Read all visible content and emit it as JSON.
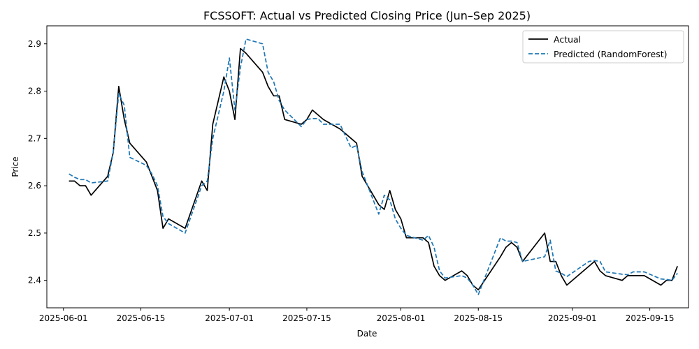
{
  "chart_data": {
    "type": "line",
    "title": "FCSSOFT: Actual vs Predicted Closing Price (Jun–Sep 2025)",
    "xlabel": "Date",
    "ylabel": "Price",
    "x_ticks": [
      "2025-06-01",
      "2025-06-15",
      "2025-07-01",
      "2025-07-15",
      "2025-08-01",
      "2025-08-15",
      "2025-09-01",
      "2025-09-15"
    ],
    "y_ticks": [
      "2.4",
      "2.5",
      "2.6",
      "2.7",
      "2.8",
      "2.9"
    ],
    "xlim": [
      "2025-05-29",
      "2025-09-22"
    ],
    "ylim": [
      2.342,
      2.938
    ],
    "legend_position": "top-right",
    "grid": false,
    "series": [
      {
        "name": "Actual",
        "color": "#000000",
        "style": "solid",
        "points": [
          [
            "2025-06-02",
            2.61
          ],
          [
            "2025-06-03",
            2.61
          ],
          [
            "2025-06-04",
            2.6
          ],
          [
            "2025-06-05",
            2.6
          ],
          [
            "2025-06-06",
            2.58
          ],
          [
            "2025-06-09",
            2.62
          ],
          [
            "2025-06-10",
            2.67
          ],
          [
            "2025-06-11",
            2.81
          ],
          [
            "2025-06-12",
            2.74
          ],
          [
            "2025-06-13",
            2.69
          ],
          [
            "2025-06-16",
            2.65
          ],
          [
            "2025-06-17",
            2.62
          ],
          [
            "2025-06-18",
            2.59
          ],
          [
            "2025-06-19",
            2.51
          ],
          [
            "2025-06-20",
            2.53
          ],
          [
            "2025-06-23",
            2.51
          ],
          [
            "2025-06-26",
            2.61
          ],
          [
            "2025-06-27",
            2.59
          ],
          [
            "2025-06-28",
            2.73
          ],
          [
            "2025-06-30",
            2.83
          ],
          [
            "2025-07-01",
            2.8
          ],
          [
            "2025-07-02",
            2.74
          ],
          [
            "2025-07-03",
            2.89
          ],
          [
            "2025-07-04",
            2.88
          ],
          [
            "2025-07-07",
            2.84
          ],
          [
            "2025-07-08",
            2.81
          ],
          [
            "2025-07-09",
            2.79
          ],
          [
            "2025-07-10",
            2.79
          ],
          [
            "2025-07-11",
            2.74
          ],
          [
            "2025-07-14",
            2.73
          ],
          [
            "2025-07-15",
            2.74
          ],
          [
            "2025-07-16",
            2.76
          ],
          [
            "2025-07-18",
            2.74
          ],
          [
            "2025-07-21",
            2.72
          ],
          [
            "2025-07-23",
            2.7
          ],
          [
            "2025-07-24",
            2.69
          ],
          [
            "2025-07-25",
            2.62
          ],
          [
            "2025-07-28",
            2.56
          ],
          [
            "2025-07-29",
            2.55
          ],
          [
            "2025-07-30",
            2.59
          ],
          [
            "2025-07-31",
            2.55
          ],
          [
            "2025-08-01",
            2.53
          ],
          [
            "2025-08-02",
            2.49
          ],
          [
            "2025-08-05",
            2.49
          ],
          [
            "2025-08-06",
            2.48
          ],
          [
            "2025-08-07",
            2.43
          ],
          [
            "2025-08-08",
            2.41
          ],
          [
            "2025-08-09",
            2.4
          ],
          [
            "2025-08-12",
            2.42
          ],
          [
            "2025-08-13",
            2.41
          ],
          [
            "2025-08-14",
            2.39
          ],
          [
            "2025-08-15",
            2.38
          ],
          [
            "2025-08-19",
            2.45
          ],
          [
            "2025-08-20",
            2.47
          ],
          [
            "2025-08-21",
            2.48
          ],
          [
            "2025-08-22",
            2.47
          ],
          [
            "2025-08-23",
            2.44
          ],
          [
            "2025-08-27",
            2.5
          ],
          [
            "2025-08-28",
            2.44
          ],
          [
            "2025-08-29",
            2.44
          ],
          [
            "2025-08-30",
            2.41
          ],
          [
            "2025-08-31",
            2.39
          ],
          [
            "2025-09-04",
            2.43
          ],
          [
            "2025-09-05",
            2.44
          ],
          [
            "2025-09-06",
            2.42
          ],
          [
            "2025-09-07",
            2.41
          ],
          [
            "2025-09-10",
            2.4
          ],
          [
            "2025-09-11",
            2.41
          ],
          [
            "2025-09-14",
            2.41
          ],
          [
            "2025-09-17",
            2.39
          ],
          [
            "2025-09-18",
            2.4
          ],
          [
            "2025-09-19",
            2.4
          ],
          [
            "2025-09-20",
            2.43
          ]
        ]
      },
      {
        "name": "Predicted (RandomForest)",
        "color": "#1f77b4",
        "style": "dashed",
        "points": [
          [
            "2025-06-02",
            2.625
          ],
          [
            "2025-06-03",
            2.618
          ],
          [
            "2025-06-04",
            2.613
          ],
          [
            "2025-06-05",
            2.613
          ],
          [
            "2025-06-06",
            2.606
          ],
          [
            "2025-06-09",
            2.61
          ],
          [
            "2025-06-10",
            2.67
          ],
          [
            "2025-06-11",
            2.795
          ],
          [
            "2025-06-12",
            2.77
          ],
          [
            "2025-06-13",
            2.66
          ],
          [
            "2025-06-16",
            2.643
          ],
          [
            "2025-06-17",
            2.625
          ],
          [
            "2025-06-18",
            2.6
          ],
          [
            "2025-06-19",
            2.535
          ],
          [
            "2025-06-20",
            2.52
          ],
          [
            "2025-06-23",
            2.5
          ],
          [
            "2025-06-26",
            2.6
          ],
          [
            "2025-06-27",
            2.61
          ],
          [
            "2025-06-28",
            2.7
          ],
          [
            "2025-06-30",
            2.8
          ],
          [
            "2025-07-01",
            2.87
          ],
          [
            "2025-07-02",
            2.76
          ],
          [
            "2025-07-03",
            2.85
          ],
          [
            "2025-07-04",
            2.91
          ],
          [
            "2025-07-07",
            2.9
          ],
          [
            "2025-07-08",
            2.84
          ],
          [
            "2025-07-09",
            2.82
          ],
          [
            "2025-07-10",
            2.78
          ],
          [
            "2025-07-11",
            2.76
          ],
          [
            "2025-07-14",
            2.725
          ],
          [
            "2025-07-15",
            2.74
          ],
          [
            "2025-07-16",
            2.742
          ],
          [
            "2025-07-17",
            2.742
          ],
          [
            "2025-07-18",
            2.73
          ],
          [
            "2025-07-21",
            2.73
          ],
          [
            "2025-07-23",
            2.68
          ],
          [
            "2025-07-24",
            2.685
          ],
          [
            "2025-07-25",
            2.63
          ],
          [
            "2025-07-28",
            2.54
          ],
          [
            "2025-07-29",
            2.58
          ],
          [
            "2025-07-30",
            2.57
          ],
          [
            "2025-07-31",
            2.53
          ],
          [
            "2025-08-01",
            2.51
          ],
          [
            "2025-08-02",
            2.495
          ],
          [
            "2025-08-05",
            2.485
          ],
          [
            "2025-08-06",
            2.495
          ],
          [
            "2025-08-07",
            2.47
          ],
          [
            "2025-08-08",
            2.42
          ],
          [
            "2025-08-09",
            2.405
          ],
          [
            "2025-08-12",
            2.41
          ],
          [
            "2025-08-13",
            2.405
          ],
          [
            "2025-08-14",
            2.39
          ],
          [
            "2025-08-15",
            2.37
          ],
          [
            "2025-08-19",
            2.49
          ],
          [
            "2025-08-20",
            2.483
          ],
          [
            "2025-08-21",
            2.483
          ],
          [
            "2025-08-22",
            2.48
          ],
          [
            "2025-08-23",
            2.44
          ],
          [
            "2025-08-27",
            2.45
          ],
          [
            "2025-08-28",
            2.485
          ],
          [
            "2025-08-29",
            2.42
          ],
          [
            "2025-08-30",
            2.415
          ],
          [
            "2025-08-31",
            2.408
          ],
          [
            "2025-09-04",
            2.44
          ],
          [
            "2025-09-05",
            2.442
          ],
          [
            "2025-09-06",
            2.44
          ],
          [
            "2025-09-07",
            2.418
          ],
          [
            "2025-09-10",
            2.413
          ],
          [
            "2025-09-11",
            2.412
          ],
          [
            "2025-09-12",
            2.418
          ],
          [
            "2025-09-14",
            2.418
          ],
          [
            "2025-09-17",
            2.403
          ],
          [
            "2025-09-18",
            2.402
          ],
          [
            "2025-09-19",
            2.4
          ],
          [
            "2025-09-20",
            2.415
          ]
        ]
      }
    ]
  }
}
